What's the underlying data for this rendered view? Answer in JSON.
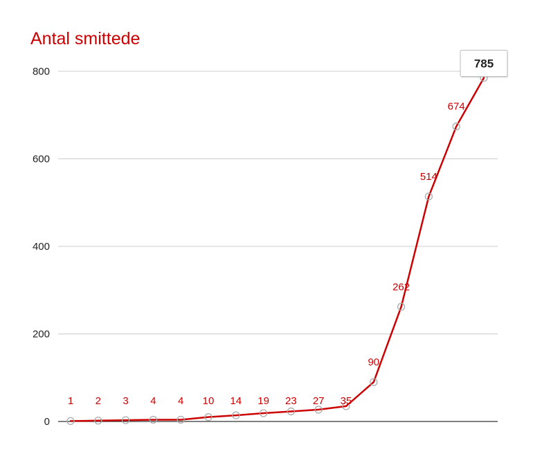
{
  "chart_data": {
    "type": "line",
    "title": "Antal smittede",
    "xlabel": "",
    "ylabel": "",
    "ylim": [
      0,
      800
    ],
    "yticks": [
      "0",
      "200",
      "400",
      "600",
      "800"
    ],
    "grid": true,
    "legend": "none",
    "series": [
      {
        "color": "#cc0000",
        "values": [
          1,
          2,
          3,
          4,
          4,
          10,
          14,
          19,
          23,
          27,
          35,
          90,
          262,
          514,
          674,
          785
        ]
      }
    ],
    "data_labels": [
      "1",
      "2",
      "3",
      "4",
      "4",
      "10",
      "14",
      "19",
      "23",
      "27",
      "35",
      "90",
      "262",
      "514",
      "674"
    ],
    "tooltip": {
      "value": "785"
    }
  }
}
